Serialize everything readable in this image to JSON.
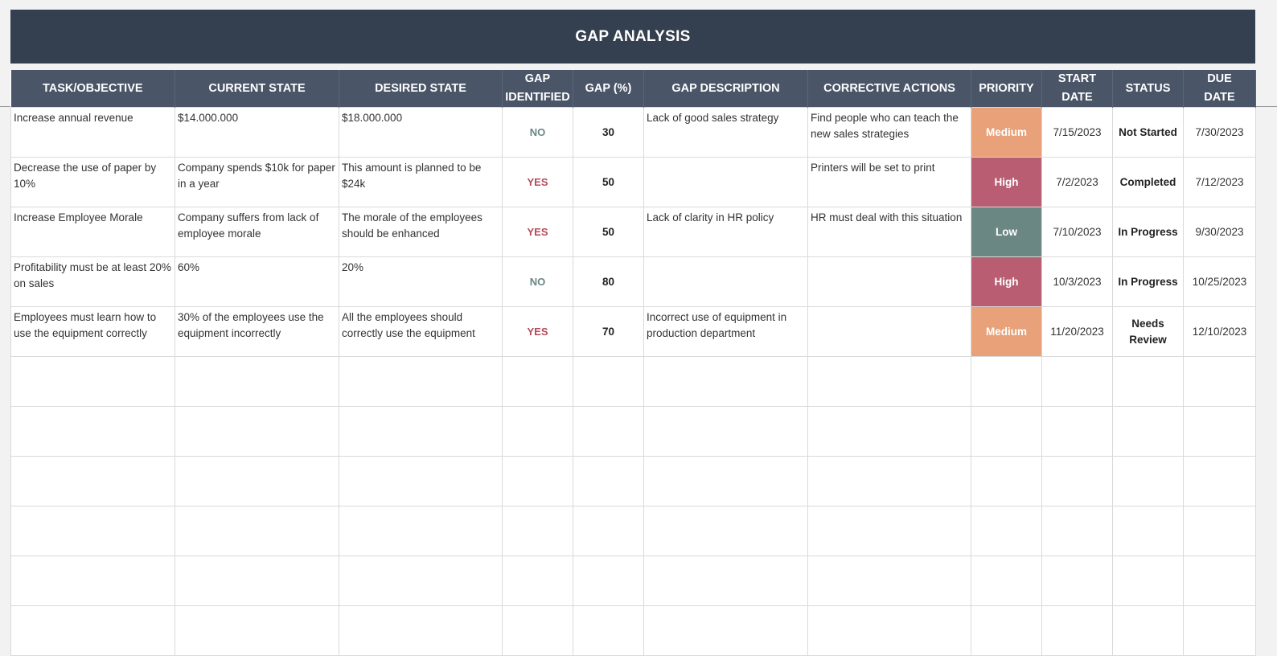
{
  "title": "GAP ANALYSIS",
  "colors": {
    "title_bg": "#343f4f",
    "header_bg": "#4a5568",
    "priority_medium": "#e8a178",
    "priority_high": "#b95d73",
    "priority_low": "#6a8783",
    "gap_yes": "#b54a5a",
    "gap_no": "#6b8585"
  },
  "headers": {
    "task": "TASK/OBJECTIVE",
    "current": "CURRENT STATE",
    "desired": "DESIRED STATE",
    "gap_identified_1": "GAP",
    "gap_identified_2": "IDENTIFIED",
    "gap_pct": "GAP (%)",
    "gap_desc": "GAP DESCRIPTION",
    "corrective": "CORRECTIVE ACTIONS",
    "priority": "PRIORITY",
    "start_1": "START",
    "start_2": "DATE",
    "status": "STATUS",
    "due_1": "DUE",
    "due_2": "DATE"
  },
  "rows": [
    {
      "task": "Increase annual revenue",
      "current": "$14.000.000",
      "desired": "$18.000.000",
      "gap_identified": "NO",
      "gap_pct": "30",
      "gap_desc": "Lack of good sales strategy",
      "corrective": "Find people who can teach the new sales strategies",
      "priority": "Medium",
      "start": "7/15/2023",
      "status": "Not Started",
      "due": "7/30/2023"
    },
    {
      "task": "Decrease the use of paper by 10%",
      "current": "Company spends $10k for paper in a year",
      "desired": "This amount is planned to be $24k",
      "gap_identified": "YES",
      "gap_pct": "50",
      "gap_desc": "",
      "corrective": "Printers will be set to print",
      "priority": "High",
      "start": "7/2/2023",
      "status": "Completed",
      "due": "7/12/2023"
    },
    {
      "task": "Increase Employee Morale",
      "current": "Company suffers from lack of employee morale",
      "desired": "The morale of the employees should be enhanced",
      "gap_identified": "YES",
      "gap_pct": "50",
      "gap_desc": "Lack of clarity in HR policy",
      "corrective": "HR must deal with this situation",
      "priority": "Low",
      "start": "7/10/2023",
      "status": "In Progress",
      "due": "9/30/2023"
    },
    {
      "task": "Profitability must be at least 20% on sales",
      "current": "60%",
      "desired": "20%",
      "gap_identified": "NO",
      "gap_pct": "80",
      "gap_desc": "",
      "corrective": "",
      "priority": "High",
      "start": "10/3/2023",
      "status": "In Progress",
      "due": "10/25/2023"
    },
    {
      "task": "Employees must learn how to use the equipment correctly",
      "current": "30% of the employees use the equipment incorrectly",
      "desired": "All the employees should correctly use the equipment",
      "gap_identified": "YES",
      "gap_pct": "70",
      "gap_desc": "Incorrect use of equipment in production department",
      "corrective": "",
      "priority": "Medium",
      "start": "11/20/2023",
      "status": "Needs Review",
      "due": "12/10/2023"
    }
  ]
}
